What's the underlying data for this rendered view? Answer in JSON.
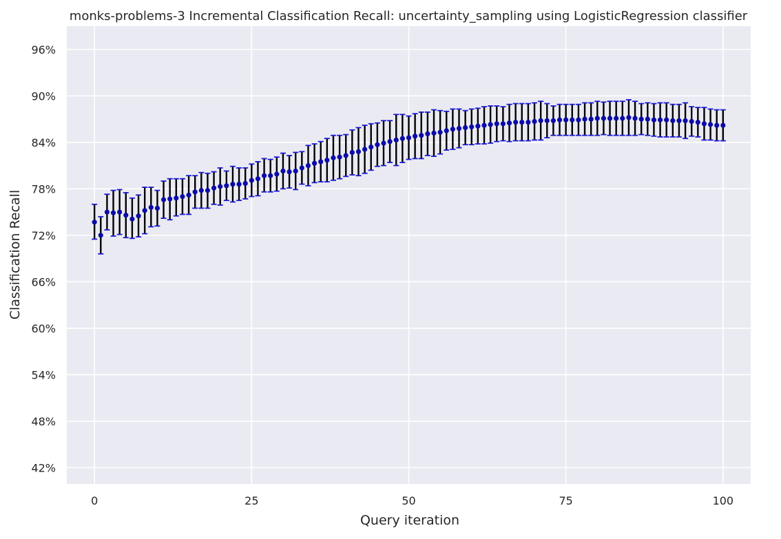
{
  "chart_data": {
    "type": "scatter",
    "title": "monks-problems-3 Incremental Classification Recall: uncertainty_sampling using LogisticRegression classifier",
    "xlabel": "Query iteration",
    "ylabel": "Classification Recall",
    "xlim": [
      -4.4,
      104.4
    ],
    "ylim": [
      0.399,
      0.99
    ],
    "x_ticks": [
      0,
      25,
      50,
      75,
      100
    ],
    "x_tick_labels": [
      "0",
      "25",
      "50",
      "75",
      "100"
    ],
    "y_ticks": [
      0.42,
      0.48,
      0.54,
      0.6,
      0.66,
      0.72,
      0.78,
      0.84,
      0.9,
      0.96
    ],
    "y_tick_labels": [
      "42%",
      "48%",
      "54%",
      "60%",
      "66%",
      "72%",
      "78%",
      "84%",
      "90%",
      "96%"
    ],
    "grid": true,
    "background": "#eaeaf2",
    "grid_color": "#ffffff",
    "point_color": "#0b0ba8",
    "errorbar_color": "#000000",
    "cap_color": "#1a1ad6",
    "series": [
      {
        "x": [
          0,
          1,
          2,
          3,
          4,
          5,
          6,
          7,
          8,
          9,
          10,
          11,
          12,
          13,
          14,
          15,
          16,
          17,
          18,
          19,
          20,
          21,
          22,
          23,
          24,
          25,
          26,
          27,
          28,
          29,
          30,
          31,
          32,
          33,
          34,
          35,
          36,
          37,
          38,
          39,
          40,
          41,
          42,
          43,
          44,
          45,
          46,
          47,
          48,
          49,
          50,
          51,
          52,
          53,
          54,
          55,
          56,
          57,
          58,
          59,
          60,
          61,
          62,
          63,
          64,
          65,
          66,
          67,
          68,
          69,
          70,
          71,
          72,
          73,
          74,
          75,
          76,
          77,
          78,
          79,
          80,
          81,
          82,
          83,
          84,
          85,
          86,
          87,
          88,
          89,
          90,
          91,
          92,
          93,
          94,
          95,
          96,
          97,
          98,
          99,
          100
        ],
        "y": [
          0.737,
          0.72,
          0.75,
          0.749,
          0.75,
          0.746,
          0.741,
          0.745,
          0.752,
          0.756,
          0.755,
          0.766,
          0.767,
          0.768,
          0.77,
          0.772,
          0.776,
          0.778,
          0.778,
          0.781,
          0.783,
          0.784,
          0.786,
          0.786,
          0.787,
          0.791,
          0.793,
          0.797,
          0.797,
          0.799,
          0.803,
          0.802,
          0.803,
          0.807,
          0.81,
          0.813,
          0.815,
          0.817,
          0.82,
          0.821,
          0.823,
          0.827,
          0.828,
          0.831,
          0.834,
          0.837,
          0.839,
          0.841,
          0.843,
          0.845,
          0.846,
          0.848,
          0.849,
          0.851,
          0.852,
          0.853,
          0.855,
          0.857,
          0.858,
          0.859,
          0.86,
          0.861,
          0.862,
          0.863,
          0.864,
          0.864,
          0.865,
          0.866,
          0.866,
          0.866,
          0.867,
          0.868,
          0.868,
          0.868,
          0.869,
          0.869,
          0.869,
          0.869,
          0.87,
          0.87,
          0.871,
          0.871,
          0.871,
          0.871,
          0.871,
          0.872,
          0.871,
          0.87,
          0.87,
          0.869,
          0.869,
          0.869,
          0.868,
          0.868,
          0.868,
          0.867,
          0.866,
          0.864,
          0.863,
          0.862,
          0.862
        ],
        "lower": [
          0.715,
          0.696,
          0.727,
          0.719,
          0.721,
          0.717,
          0.716,
          0.718,
          0.722,
          0.731,
          0.732,
          0.742,
          0.74,
          0.745,
          0.747,
          0.747,
          0.755,
          0.755,
          0.755,
          0.76,
          0.759,
          0.765,
          0.763,
          0.765,
          0.767,
          0.77,
          0.771,
          0.776,
          0.776,
          0.777,
          0.78,
          0.781,
          0.779,
          0.786,
          0.784,
          0.788,
          0.789,
          0.789,
          0.791,
          0.793,
          0.796,
          0.798,
          0.797,
          0.8,
          0.804,
          0.809,
          0.81,
          0.814,
          0.81,
          0.814,
          0.818,
          0.819,
          0.819,
          0.823,
          0.822,
          0.825,
          0.83,
          0.831,
          0.833,
          0.837,
          0.837,
          0.838,
          0.838,
          0.839,
          0.841,
          0.842,
          0.841,
          0.842,
          0.842,
          0.842,
          0.843,
          0.843,
          0.846,
          0.849,
          0.849,
          0.849,
          0.849,
          0.849,
          0.849,
          0.849,
          0.849,
          0.85,
          0.849,
          0.849,
          0.849,
          0.849,
          0.849,
          0.85,
          0.849,
          0.848,
          0.847,
          0.847,
          0.847,
          0.847,
          0.845,
          0.848,
          0.847,
          0.843,
          0.843,
          0.842,
          0.842
        ],
        "upper": [
          0.76,
          0.744,
          0.773,
          0.778,
          0.779,
          0.775,
          0.768,
          0.772,
          0.782,
          0.782,
          0.778,
          0.79,
          0.793,
          0.793,
          0.793,
          0.797,
          0.797,
          0.801,
          0.8,
          0.802,
          0.807,
          0.803,
          0.809,
          0.807,
          0.807,
          0.812,
          0.815,
          0.819,
          0.818,
          0.821,
          0.826,
          0.823,
          0.827,
          0.828,
          0.836,
          0.838,
          0.841,
          0.845,
          0.849,
          0.849,
          0.85,
          0.856,
          0.859,
          0.862,
          0.864,
          0.865,
          0.868,
          0.868,
          0.876,
          0.876,
          0.874,
          0.877,
          0.879,
          0.879,
          0.882,
          0.881,
          0.88,
          0.883,
          0.883,
          0.881,
          0.883,
          0.884,
          0.886,
          0.887,
          0.887,
          0.886,
          0.889,
          0.89,
          0.89,
          0.89,
          0.891,
          0.893,
          0.89,
          0.887,
          0.889,
          0.889,
          0.889,
          0.889,
          0.891,
          0.891,
          0.893,
          0.892,
          0.893,
          0.893,
          0.893,
          0.895,
          0.893,
          0.89,
          0.891,
          0.89,
          0.891,
          0.891,
          0.889,
          0.889,
          0.891,
          0.886,
          0.885,
          0.885,
          0.883,
          0.882,
          0.882
        ]
      }
    ]
  }
}
